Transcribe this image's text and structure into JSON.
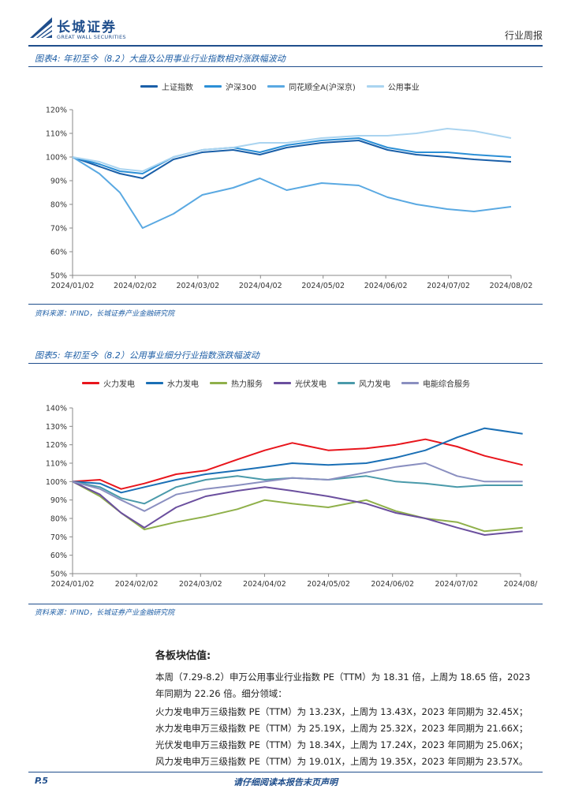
{
  "header": {
    "logo_cn": "长城证券",
    "logo_en": "GREAT WALL SECURITIES",
    "doc_type": "行业周报"
  },
  "figure4": {
    "title": "图表4: 年初至今（8.2）大盘及公用事业行业指数相对涨跌幅波动",
    "source": "资料来源：IFIND，长城证券产业金融研究院"
  },
  "figure5": {
    "title": "图表5: 年初至今（8.2）公用事业细分行业指数涨跌幅波动",
    "source": "资料来源：IFIND，长城证券产业金融研究院"
  },
  "chart_data": [
    {
      "type": "line",
      "title": "",
      "xlabel": "",
      "ylabel": "",
      "x_ticks": [
        "2024/01/02",
        "2024/02/02",
        "2024/03/02",
        "2024/04/02",
        "2024/05/02",
        "2024/06/02",
        "2024/07/02",
        "2024/08/02"
      ],
      "y_ticks": [
        "50%",
        "60%",
        "70%",
        "80%",
        "90%",
        "100%",
        "110%",
        "120%"
      ],
      "ylim": [
        50,
        120
      ],
      "legend_position": "top",
      "grid": false,
      "x": [
        "2024/01/02",
        "2024/01/15",
        "2024/01/25",
        "2024/02/05",
        "2024/02/20",
        "2024/03/05",
        "2024/03/20",
        "2024/04/02",
        "2024/04/15",
        "2024/05/02",
        "2024/05/20",
        "2024/06/03",
        "2024/06/17",
        "2024/07/02",
        "2024/07/15",
        "2024/08/02"
      ],
      "series": [
        {
          "name": "上证指数",
          "color": "#1a5fa8",
          "values": [
            100,
            96,
            93,
            91,
            99,
            102,
            103,
            101,
            104,
            106,
            107,
            103,
            101,
            100,
            99,
            98
          ]
        },
        {
          "name": "沪深300",
          "color": "#2b8fd6",
          "values": [
            100,
            97,
            94,
            93,
            100,
            103,
            104,
            102,
            105,
            107,
            108,
            104,
            102,
            102,
            101,
            100
          ]
        },
        {
          "name": "同花顺全A(沪深京)",
          "color": "#5aa9e2",
          "values": [
            100,
            93,
            85,
            70,
            76,
            84,
            87,
            91,
            86,
            89,
            88,
            83,
            80,
            78,
            77,
            79
          ]
        },
        {
          "name": "公用事业",
          "color": "#aad4f0",
          "values": [
            100,
            98,
            95,
            94,
            100,
            103,
            104,
            106,
            106,
            108,
            109,
            109,
            110,
            112,
            111,
            108
          ]
        }
      ]
    },
    {
      "type": "line",
      "title": "",
      "xlabel": "",
      "ylabel": "",
      "x_ticks": [
        "2024/01/02",
        "2024/02/02",
        "2024/03/02",
        "2024/04/02",
        "2024/05/02",
        "2024/06/02",
        "2024/07/02",
        "2024/08/"
      ],
      "y_ticks": [
        "50%",
        "60%",
        "70%",
        "80%",
        "90%",
        "100%",
        "110%",
        "120%",
        "130%",
        "140%"
      ],
      "ylim": [
        50,
        140
      ],
      "legend_position": "top",
      "grid": false,
      "x": [
        "2024/01/02",
        "2024/01/15",
        "2024/01/25",
        "2024/02/05",
        "2024/02/20",
        "2024/03/05",
        "2024/03/20",
        "2024/04/02",
        "2024/04/15",
        "2024/05/02",
        "2024/05/20",
        "2024/06/03",
        "2024/06/17",
        "2024/07/02",
        "2024/07/15",
        "2024/08/02"
      ],
      "series": [
        {
          "name": "火力发电",
          "color": "#e8151c",
          "values": [
            100,
            101,
            96,
            99,
            104,
            106,
            112,
            117,
            121,
            117,
            118,
            120,
            123,
            119,
            114,
            109
          ]
        },
        {
          "name": "水力发电",
          "color": "#1a6fb5",
          "values": [
            100,
            99,
            94,
            97,
            101,
            104,
            106,
            108,
            110,
            109,
            110,
            113,
            117,
            124,
            129,
            126
          ]
        },
        {
          "name": "热力服务",
          "color": "#8fb04a",
          "values": [
            100,
            92,
            83,
            74,
            78,
            81,
            85,
            90,
            88,
            86,
            90,
            84,
            80,
            78,
            73,
            75
          ]
        },
        {
          "name": "光伏发电",
          "color": "#6b4f9e",
          "values": [
            100,
            93,
            83,
            75,
            86,
            92,
            95,
            97,
            95,
            92,
            88,
            83,
            80,
            75,
            71,
            73
          ]
        },
        {
          "name": "风力发电",
          "color": "#4a9aaa",
          "values": [
            100,
            97,
            91,
            88,
            97,
            101,
            103,
            101,
            102,
            101,
            103,
            100,
            99,
            97,
            98,
            98
          ]
        },
        {
          "name": "电能综合服务",
          "color": "#8a8fc0",
          "values": [
            100,
            96,
            90,
            84,
            93,
            96,
            98,
            100,
            102,
            101,
            105,
            108,
            110,
            103,
            100,
            100
          ]
        }
      ]
    }
  ],
  "valuation": {
    "heading": "各板块估值:",
    "paragraphs": [
      "本周（7.29-8.2）申万公用事业行业指数 PE（TTM）为 18.31 倍，上周为 18.65 倍，2023 年同期为 22.26 倍。细分领域：",
      "火力发电申万三级指数 PE（TTM）为 13.23X，上周为 13.43X，2023 年同期为 32.45X；\n水力发电申万三级指数 PE（TTM）为 25.19X，上周为 25.32X，2023 年同期为 21.66X；\n光伏发电申万三级指数 PE（TTM）为 18.34X，上周为 17.24X，2023 年同期为 25.06X；\n风力发电申万三级指数 PE（TTM）为 19.01X，上周为 19.35X，2023 年同期为 23.57X。"
    ]
  },
  "footer": {
    "page": "P.5",
    "disclaimer": "请仔细阅读本报告末页声明"
  }
}
